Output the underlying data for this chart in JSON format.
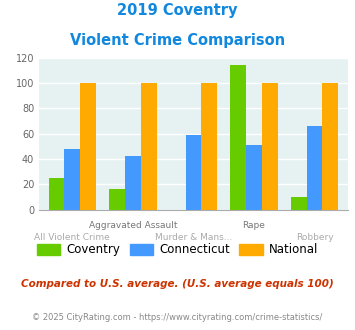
{
  "title_line1": "2019 Coventry",
  "title_line2": "Violent Crime Comparison",
  "categories": [
    "All Violent Crime",
    "Aggravated Assault",
    "Murder & Mans...",
    "Rape",
    "Robbery"
  ],
  "coventry": [
    25,
    16,
    0,
    114,
    10
  ],
  "connecticut": [
    48,
    42,
    59,
    51,
    66
  ],
  "national": [
    100,
    100,
    100,
    100,
    100
  ],
  "bar_colors": {
    "coventry": "#66cc00",
    "connecticut": "#4499ff",
    "national": "#ffaa00"
  },
  "ylim": [
    0,
    120
  ],
  "yticks": [
    0,
    20,
    40,
    60,
    80,
    100,
    120
  ],
  "title_color": "#1188dd",
  "bg_color": "#e6f2f2",
  "grid_color": "#ffffff",
  "footnote1": "Compared to U.S. average. (U.S. average equals 100)",
  "footnote2": "© 2025 CityRating.com - https://www.cityrating.com/crime-statistics/",
  "footnote1_color": "#cc3300",
  "footnote2_color": "#888888",
  "legend_labels": [
    "Coventry",
    "Connecticut",
    "National"
  ],
  "xlabels_upper": [
    "",
    "Aggravated Assault",
    "",
    "Rape",
    ""
  ],
  "xlabels_lower": [
    "All Violent Crime",
    "",
    "Murder & Mans...",
    "",
    "Robbery"
  ],
  "xlabel_upper_color": "#777777",
  "xlabel_lower_color": "#aaaaaa"
}
